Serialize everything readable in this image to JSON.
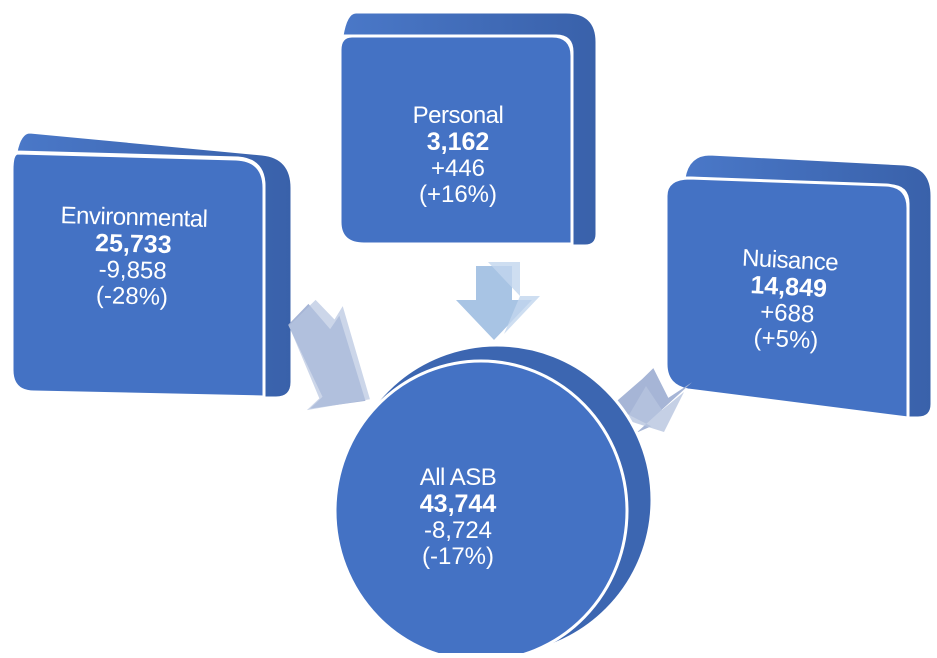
{
  "diagram": {
    "colors": {
      "box_face": "#4472c4",
      "box_side": "#3c66b1",
      "arrow_light": "#a8c4e4",
      "arrow_muted": "#a6b5d6",
      "text": "#ffffff"
    },
    "sources": [
      {
        "name": "Environmental",
        "total": "25,733",
        "change": "-9,858",
        "pct": "(-28%)"
      },
      {
        "name": "Personal",
        "total": "3,162",
        "change": "+446",
        "pct": "(+16%)"
      },
      {
        "name": "Nuisance",
        "total": "14,849",
        "change": "+688",
        "pct": "(+5%)"
      }
    ],
    "target": {
      "name": "All ASB",
      "total": "43,744",
      "change": "-8,724",
      "pct": "(-17%)"
    }
  }
}
